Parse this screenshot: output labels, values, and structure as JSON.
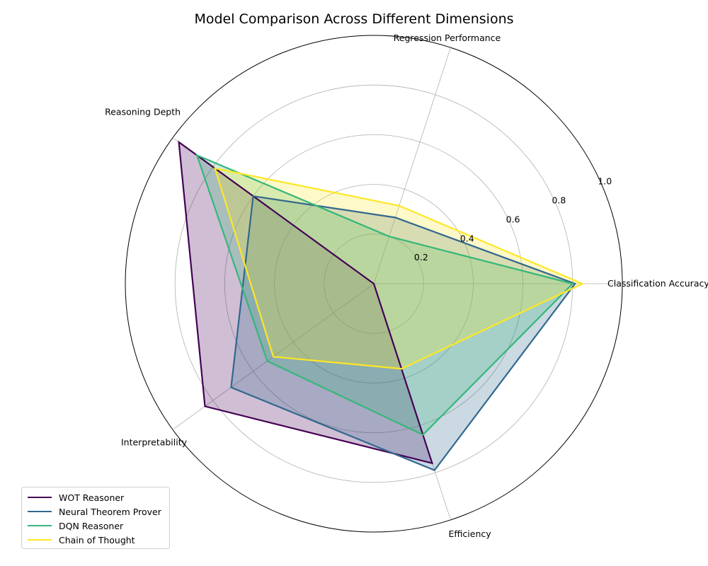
{
  "chart_data": {
    "type": "radar",
    "title": "Model Comparison Across Different Dimensions",
    "axes": [
      "Classification Accuracy",
      "Regression Performance",
      "Reasoning Depth",
      "Interpretability",
      "Efficiency"
    ],
    "rlim": [
      0,
      1.0
    ],
    "rticks": [
      0.2,
      0.4,
      0.6,
      0.8,
      1.0
    ],
    "rtick_labels": [
      "0.2",
      "0.4",
      "0.6",
      "0.8",
      "1.0"
    ],
    "grid": true,
    "legend_position": "lower-left",
    "series": [
      {
        "name": "WOT Reasoner",
        "color": "#440154",
        "values": [
          0.0,
          0.0,
          0.97,
          0.84,
          0.76
        ]
      },
      {
        "name": "Neural Theorem Prover",
        "color": "#31688e",
        "values": [
          0.81,
          0.28,
          0.6,
          0.71,
          0.79
        ]
      },
      {
        "name": "DQN Reasoner",
        "color": "#35b779",
        "values": [
          0.8,
          0.2,
          0.88,
          0.53,
          0.64
        ]
      },
      {
        "name": "Chain of Thought",
        "color": "#fde725",
        "values": [
          0.84,
          0.33,
          0.79,
          0.5,
          0.36
        ]
      }
    ]
  }
}
